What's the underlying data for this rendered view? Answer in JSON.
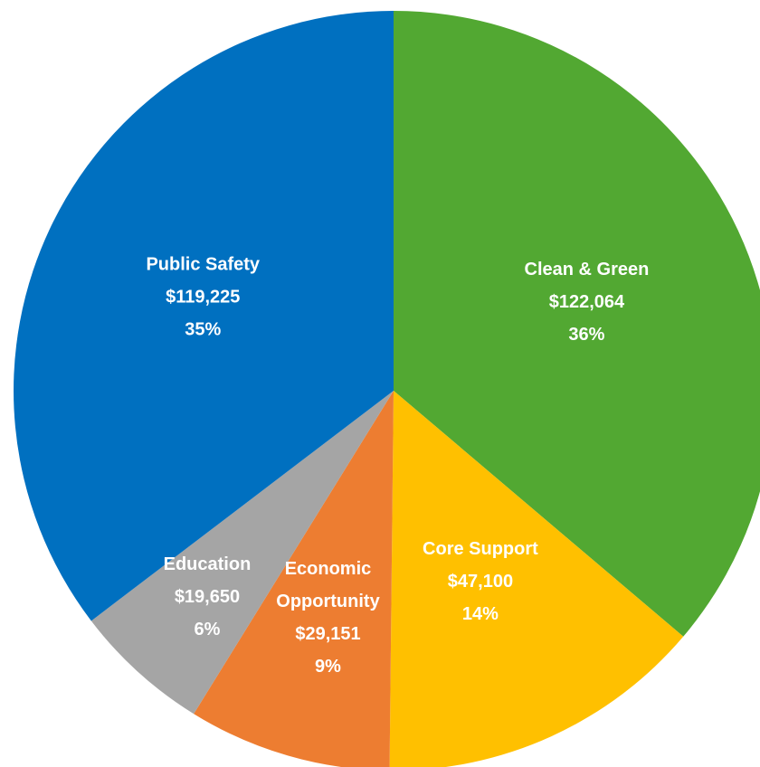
{
  "chart_data": {
    "type": "pie",
    "title": "",
    "start_angle_deg": 0,
    "direction": "clockwise",
    "slices": [
      {
        "label": "Clean & Green",
        "amount": "$122,064",
        "percent": "36%",
        "value": 122064,
        "color": "#52A832"
      },
      {
        "label": "Core Support",
        "amount": "$47,100",
        "percent": "14%",
        "value": 47100,
        "color": "#FFC000"
      },
      {
        "label": "Economic\nOpportunity",
        "amount": "$29,151",
        "percent": "9%",
        "value": 29151,
        "color": "#ED7D31"
      },
      {
        "label": "Education",
        "amount": "$19,650",
        "percent": "6%",
        "value": 19650,
        "color": "#A5A5A5"
      },
      {
        "label": "Public Safety",
        "amount": "$119,225",
        "percent": "35%",
        "value": 119225,
        "color": "#0070C0"
      }
    ]
  }
}
